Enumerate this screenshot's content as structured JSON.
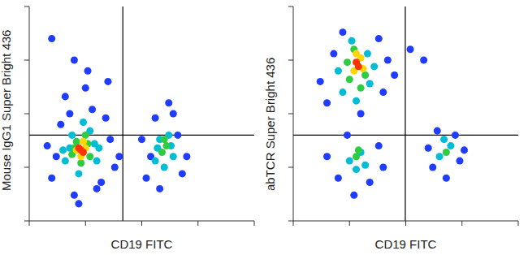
{
  "chart_data": [
    {
      "type": "scatter",
      "x_label": "CD19 FITC",
      "y_label": "Mouse IgG1 Super Bright 436",
      "xlim": [
        0,
        100
      ],
      "ylim": [
        0,
        100
      ],
      "xticks": [
        0,
        25,
        50,
        75,
        100
      ],
      "yticks": [
        0,
        25,
        50,
        75,
        100
      ],
      "tick_labels": false,
      "gates": {
        "x": 41.6,
        "y": 40
      },
      "series": [
        {
          "color": "#1f3cff",
          "marker": "circle",
          "x": [
            10,
            14,
            18,
            30,
            34,
            38,
            12,
            20,
            28,
            36,
            16,
            32,
            25,
            8,
            40,
            22,
            26,
            52,
            56,
            64,
            68,
            54,
            66,
            58,
            62,
            50,
            70,
            20,
            35,
            10
          ],
          "y": [
            20,
            45,
            50,
            15,
            48,
            25,
            30,
            12,
            52,
            38,
            58,
            18,
            62,
            35,
            30,
            8,
            70,
            20,
            48,
            50,
            22,
            30,
            40,
            15,
            55,
            38,
            30,
            75,
            65,
            85
          ]
        },
        {
          "color": "#00bcd4",
          "marker": "circle",
          "x": [
            16,
            19,
            27,
            30,
            22,
            24,
            18,
            29,
            15,
            31,
            56,
            58,
            62,
            64,
            60,
            57,
            63
          ],
          "y": [
            28,
            40,
            42,
            28,
            22,
            46,
            34,
            36,
            33,
            34,
            28,
            38,
            40,
            30,
            25,
            34,
            35
          ]
        },
        {
          "color": "#2ecc40",
          "marker": "circle",
          "x": [
            19,
            21,
            26,
            27,
            23,
            20,
            25,
            59,
            61,
            60
          ],
          "y": [
            31,
            37,
            36,
            30,
            27,
            34,
            40,
            32,
            35,
            38
          ]
        },
        {
          "color": "#ffd700",
          "marker": "circle",
          "x": [
            21,
            25,
            23,
            24
          ],
          "y": [
            33,
            34,
            30,
            37
          ]
        },
        {
          "color": "#ff3300",
          "marker": "circle",
          "x": [
            23,
            22,
            24
          ],
          "y": [
            33,
            34,
            32
          ]
        }
      ]
    },
    {
      "type": "scatter",
      "x_label": "CD19 FITC",
      "y_label": "abTCR Super Bright 436",
      "xlim": [
        0,
        100
      ],
      "ylim": [
        0,
        100
      ],
      "xticks": [
        0,
        25,
        50,
        75,
        100
      ],
      "yticks": [
        0,
        25,
        50,
        75,
        100
      ],
      "tick_labels": false,
      "gates": {
        "x": 49.8,
        "y": 40
      },
      "series": [
        {
          "color": "#1f3cff",
          "marker": "circle",
          "x": [
            15,
            40,
            22,
            38,
            18,
            30,
            42,
            12,
            45,
            20,
            38,
            24,
            34,
            15,
            40,
            27,
            62,
            74,
            64,
            72,
            60,
            76,
            68,
            52,
            58
          ],
          "y": [
            55,
            60,
            88,
            85,
            78,
            50,
            75,
            65,
            68,
            20,
            35,
            40,
            18,
            30,
            25,
            12,
            25,
            28,
            42,
            40,
            34,
            33,
            20,
            80,
            75
          ]
        },
        {
          "color": "#00bcd4",
          "marker": "circle",
          "x": [
            22,
            34,
            26,
            33,
            28,
            20,
            36,
            25,
            30,
            28,
            32,
            65,
            70,
            67
          ],
          "y": [
            60,
            64,
            84,
            78,
            56,
            70,
            72,
            28,
            32,
            24,
            26,
            30,
            35,
            38
          ]
        },
        {
          "color": "#2ecc40",
          "marker": "circle",
          "x": [
            25,
            32,
            27,
            30,
            24,
            28,
            29,
            68
          ],
          "y": [
            66,
            68,
            80,
            62,
            74,
            30,
            33,
            32
          ]
        },
        {
          "color": "#ffd700",
          "marker": "circle",
          "x": [
            27,
            30,
            28,
            31
          ],
          "y": [
            70,
            76,
            78,
            71
          ]
        },
        {
          "color": "#ff3300",
          "marker": "circle",
          "x": [
            28,
            29
          ],
          "y": [
            74,
            72
          ]
        }
      ]
    }
  ]
}
